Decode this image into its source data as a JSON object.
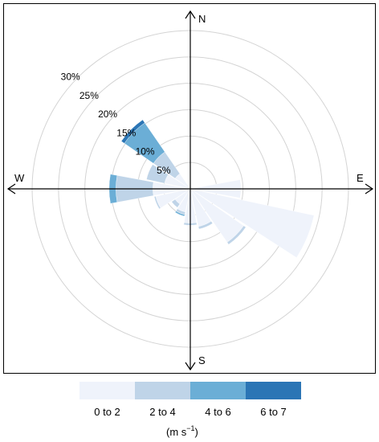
{
  "chart_data": {
    "type": "wind-rose",
    "directions_deg": [
      0,
      22.5,
      45,
      67.5,
      90,
      112.5,
      135,
      157.5,
      180,
      202.5,
      225,
      247.5,
      270,
      292.5,
      315,
      337.5
    ],
    "bins": [
      "0 to 2",
      "2 to 4",
      "4 to 6",
      "6 to 7"
    ],
    "bin_colors": [
      "#EFF3FB",
      "#BFD4E8",
      "#6BAED6",
      "#2B75B5"
    ],
    "series": [
      {
        "direction": 0,
        "values": [
          0.5,
          0,
          0,
          0
        ]
      },
      {
        "direction": 22.5,
        "values": [
          0.3,
          0,
          0,
          0
        ]
      },
      {
        "direction": 45,
        "values": [
          0.2,
          0,
          0,
          0
        ]
      },
      {
        "direction": 67.5,
        "values": [
          0.3,
          0,
          0,
          0
        ]
      },
      {
        "direction": 90,
        "values": [
          9.6,
          0,
          0,
          0
        ]
      },
      {
        "direction": 112.5,
        "values": [
          24.0,
          0,
          0,
          0
        ]
      },
      {
        "direction": 135,
        "values": [
          12.3,
          0.5,
          0,
          0
        ]
      },
      {
        "direction": 157.5,
        "values": [
          7.3,
          0.5,
          0,
          0
        ]
      },
      {
        "direction": 180,
        "values": [
          6.5,
          0.4,
          0,
          0
        ]
      },
      {
        "direction": 202.5,
        "values": [
          4.5,
          0.5,
          0.3,
          0
        ]
      },
      {
        "direction": 225,
        "values": [
          3.5,
          0.8,
          0,
          0
        ]
      },
      {
        "direction": 247.5,
        "values": [
          6.7,
          0.3,
          0,
          0
        ]
      },
      {
        "direction": 270,
        "values": [
          7.1,
          7.0,
          1.3,
          0
        ]
      },
      {
        "direction": 292.5,
        "values": [
          5.0,
          3.5,
          0,
          0
        ]
      },
      {
        "direction": 315,
        "values": [
          3.5,
          5.0,
          6.7,
          0.7
        ]
      },
      {
        "direction": 337.5,
        "values": [
          0.3,
          0,
          0,
          0
        ]
      }
    ],
    "radial_ticks": [
      5,
      10,
      15,
      20,
      25,
      30
    ],
    "radial_tick_labels": [
      "5%",
      "10%",
      "15%",
      "20%",
      "25%",
      "30%"
    ],
    "rmax": 30,
    "compass_labels": {
      "n": "N",
      "e": "E",
      "s": "S",
      "w": "W"
    },
    "legend": {
      "unit_prefix": "(m s",
      "unit_exp": "−1",
      "unit_suffix": ")"
    }
  }
}
